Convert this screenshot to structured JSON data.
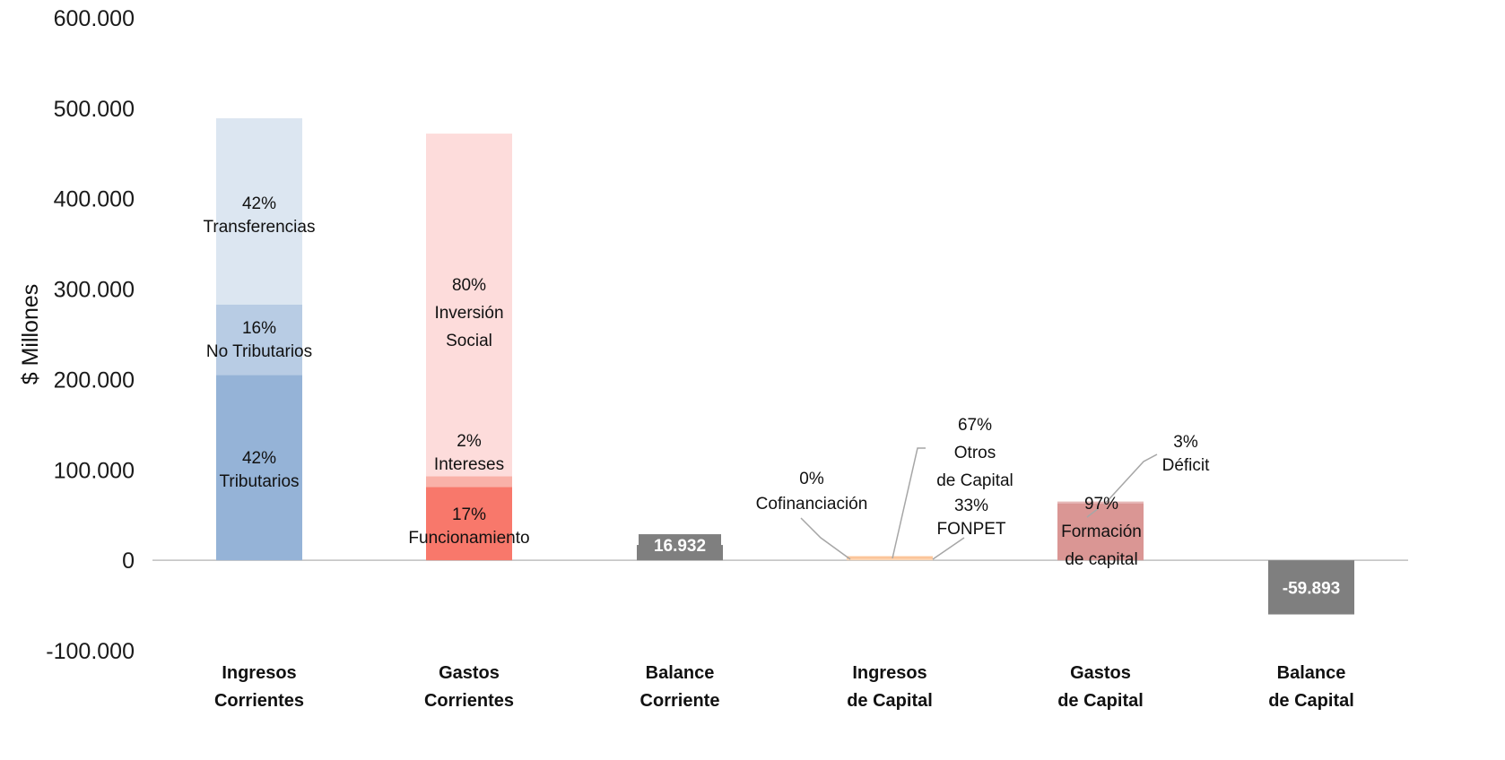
{
  "chart_data": {
    "type": "bar",
    "ylabel": "$ Millones",
    "ylim": [
      -100000,
      600000
    ],
    "yticks": [
      {
        "value": 600000,
        "label": "600.000"
      },
      {
        "value": 500000,
        "label": "500.000"
      },
      {
        "value": 400000,
        "label": "400.000"
      },
      {
        "value": 300000,
        "label": "300.000"
      },
      {
        "value": 200000,
        "label": "200.000"
      },
      {
        "value": 100000,
        "label": "100.000"
      },
      {
        "value": 0,
        "label": "0"
      },
      {
        "value": -100000,
        "label": "-100.000"
      }
    ],
    "categories": [
      {
        "lines": [
          "Ingresos",
          "Corrientes"
        ]
      },
      {
        "lines": [
          "Gastos",
          "Corrientes"
        ]
      },
      {
        "lines": [
          "Balance",
          "Corriente"
        ]
      },
      {
        "lines": [
          "Ingresos",
          "de Capital"
        ]
      },
      {
        "lines": [
          "Gastos",
          "de Capital"
        ]
      },
      {
        "lines": [
          "Balance",
          "de Capital"
        ]
      }
    ],
    "bars": [
      {
        "category": 0,
        "segments": [
          {
            "start": 0,
            "end": 205000,
            "color": "#95b3d7",
            "label": [
              "42%",
              "Tributarios"
            ]
          },
          {
            "start": 205000,
            "end": 283000,
            "color": "#b8cce4",
            "label": [
              "16%",
              "No Tributarios"
            ]
          },
          {
            "start": 283000,
            "end": 489000,
            "color": "#dce6f1",
            "label": [
              "42%",
              "Transferencias"
            ]
          }
        ]
      },
      {
        "category": 1,
        "segments": [
          {
            "start": 0,
            "end": 81000,
            "color": "#f8786b",
            "label": [
              "17%",
              "Funcionamiento"
            ]
          },
          {
            "start": 81000,
            "end": 93000,
            "color": "#f9b1a8",
            "label": [
              "2%",
              "Intereses"
            ]
          },
          {
            "start": 93000,
            "end": 472000,
            "color": "#fddcdb",
            "label": [
              "80%",
              "Inversión",
              "Social"
            ]
          }
        ]
      },
      {
        "category": 2,
        "value": 16932,
        "value_label": "16.932",
        "color": "#7f7f7f"
      },
      {
        "category": 3,
        "segments": [
          {
            "start": 0,
            "end": 1500,
            "color": "#fcd5b4",
            "label": [
              "33%",
              "FONPET"
            ]
          },
          {
            "start": 1500,
            "end": 4500,
            "color": "#fbc59a",
            "label": [
              "67%",
              "Otros",
              "de Capital"
            ]
          }
        ],
        "extra_label": [
          "0%",
          "Cofinanciación"
        ]
      },
      {
        "category": 4,
        "segments": [
          {
            "start": 0,
            "end": 63000,
            "color": "#da9694",
            "label": [
              "97%",
              "Formación",
              "de capital"
            ]
          },
          {
            "start": 63000,
            "end": 65000,
            "color": "#e6b8b7",
            "label": [
              "3%",
              "Déficit"
            ]
          }
        ]
      },
      {
        "category": 5,
        "value": -59893,
        "value_label": "-59.893",
        "color": "#7f7f7f"
      }
    ]
  }
}
